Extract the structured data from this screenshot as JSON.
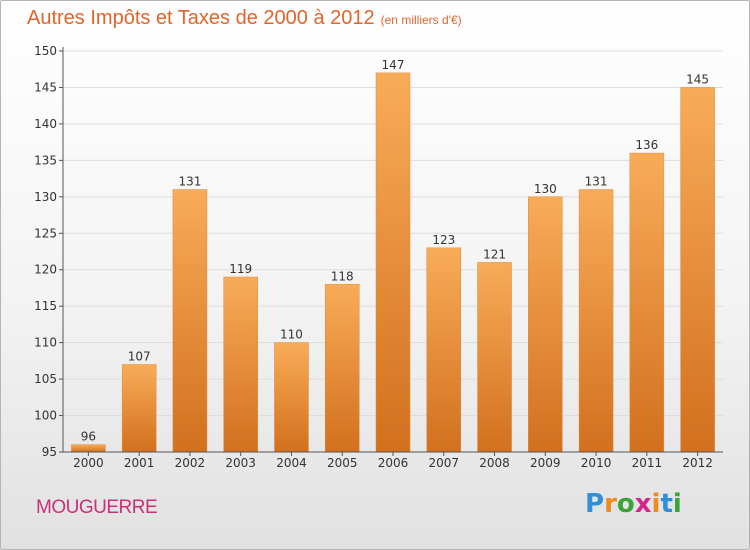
{
  "title": "Autres Impôts et Taxes de 2000 à 2012",
  "unit": "(en milliers d'€)",
  "commune": "MOUGUERRE",
  "logo": {
    "text": "Proxiti",
    "letters": [
      {
        "char": "P",
        "color": "#2f8fd8"
      },
      {
        "char": "r",
        "color": "#f08a1c"
      },
      {
        "char": "o",
        "color": "#3aa43a"
      },
      {
        "char": "x",
        "color": "#d6248a"
      },
      {
        "char": "i",
        "color": "#f08a1c"
      },
      {
        "char": "t",
        "color": "#2f8fd8"
      },
      {
        "char": "i",
        "color": "#3aa43a"
      }
    ]
  },
  "colors": {
    "title": "#e0652a",
    "commune": "#cc2f7a",
    "bar_light": "#f8ac58",
    "bar_dark": "#d2701e",
    "axis": "#555555",
    "grid": "#dddddd"
  },
  "chart_data": {
    "type": "bar",
    "title": "Autres Impôts et Taxes de 2000 à 2012",
    "subtitle": "(en milliers d'€)",
    "xlabel": "",
    "ylabel": "",
    "categories": [
      "2000",
      "2001",
      "2002",
      "2003",
      "2004",
      "2005",
      "2006",
      "2007",
      "2008",
      "2009",
      "2010",
      "2011",
      "2012"
    ],
    "values": [
      96,
      107,
      131,
      119,
      110,
      118,
      147,
      123,
      121,
      130,
      131,
      136,
      145
    ],
    "ylim": [
      95,
      150
    ],
    "yticks": [
      95,
      100,
      105,
      110,
      115,
      120,
      125,
      130,
      135,
      140,
      145,
      150
    ],
    "grid": true,
    "data_labels": true
  }
}
